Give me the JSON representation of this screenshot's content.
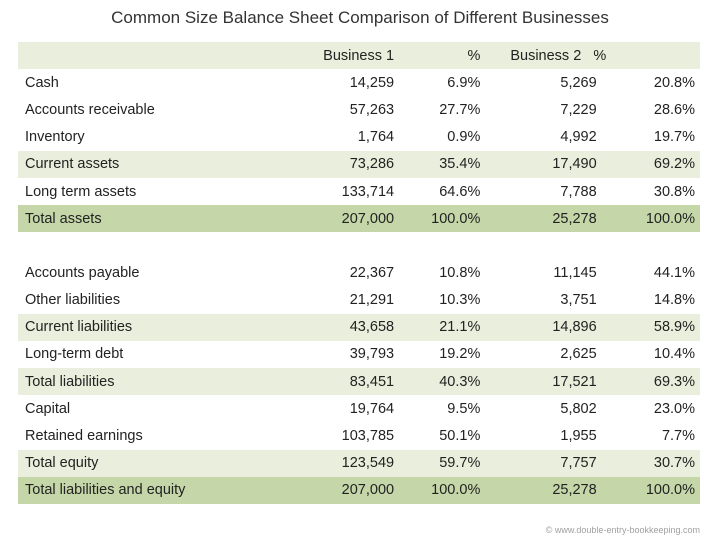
{
  "title": "Common Size Balance Sheet Comparison of Different Businesses",
  "headers": {
    "label": "",
    "business1": "Business 1",
    "pct1": "%",
    "business2": "Business 2",
    "pct2": "%"
  },
  "section1": [
    {
      "label": "Cash",
      "b1": "14,259",
      "p1": "6.9%",
      "b2": "5,269",
      "p2": "20.8%",
      "style": "plain"
    },
    {
      "label": "Accounts receivable",
      "b1": "57,263",
      "p1": "27.7%",
      "b2": "7,229",
      "p2": "28.6%",
      "style": "plain"
    },
    {
      "label": "Inventory",
      "b1": "1,764",
      "p1": "0.9%",
      "b2": "4,992",
      "p2": "19.7%",
      "style": "plain"
    },
    {
      "label": "Current assets",
      "b1": "73,286",
      "p1": "35.4%",
      "b2": "17,490",
      "p2": "69.2%",
      "style": "sub"
    },
    {
      "label": "Long term assets",
      "b1": "133,714",
      "p1": "64.6%",
      "b2": "7,788",
      "p2": "30.8%",
      "style": "plain"
    },
    {
      "label": "Total assets",
      "b1": "207,000",
      "p1": "100.0%",
      "b2": "25,278",
      "p2": "100.0%",
      "style": "total"
    }
  ],
  "section2": [
    {
      "label": "Accounts payable",
      "b1": "22,367",
      "p1": "10.8%",
      "b2": "11,145",
      "p2": "44.1%",
      "style": "plain"
    },
    {
      "label": "Other liabilities",
      "b1": "21,291",
      "p1": "10.3%",
      "b2": "3,751",
      "p2": "14.8%",
      "style": "plain"
    },
    {
      "label": "Current liabilities",
      "b1": "43,658",
      "p1": "21.1%",
      "b2": "14,896",
      "p2": "58.9%",
      "style": "sub"
    },
    {
      "label": "Long-term debt",
      "b1": "39,793",
      "p1": "19.2%",
      "b2": "2,625",
      "p2": "10.4%",
      "style": "plain"
    },
    {
      "label": "Total liabilities",
      "b1": "83,451",
      "p1": "40.3%",
      "b2": "17,521",
      "p2": "69.3%",
      "style": "sub"
    },
    {
      "label": "Capital",
      "b1": "19,764",
      "p1": "9.5%",
      "b2": "5,802",
      "p2": "23.0%",
      "style": "plain"
    },
    {
      "label": "Retained earnings",
      "b1": "103,785",
      "p1": "50.1%",
      "b2": "1,955",
      "p2": "7.7%",
      "style": "plain"
    },
    {
      "label": "Total equity",
      "b1": "123,549",
      "p1": "59.7%",
      "b2": "7,757",
      "p2": "30.7%",
      "style": "sub"
    },
    {
      "label": "Total liabilities and equity",
      "b1": "207,000",
      "p1": "100.0%",
      "b2": "25,278",
      "p2": "100.0%",
      "style": "total"
    }
  ],
  "copyright": "© www.double-entry-bookkeeping.com"
}
